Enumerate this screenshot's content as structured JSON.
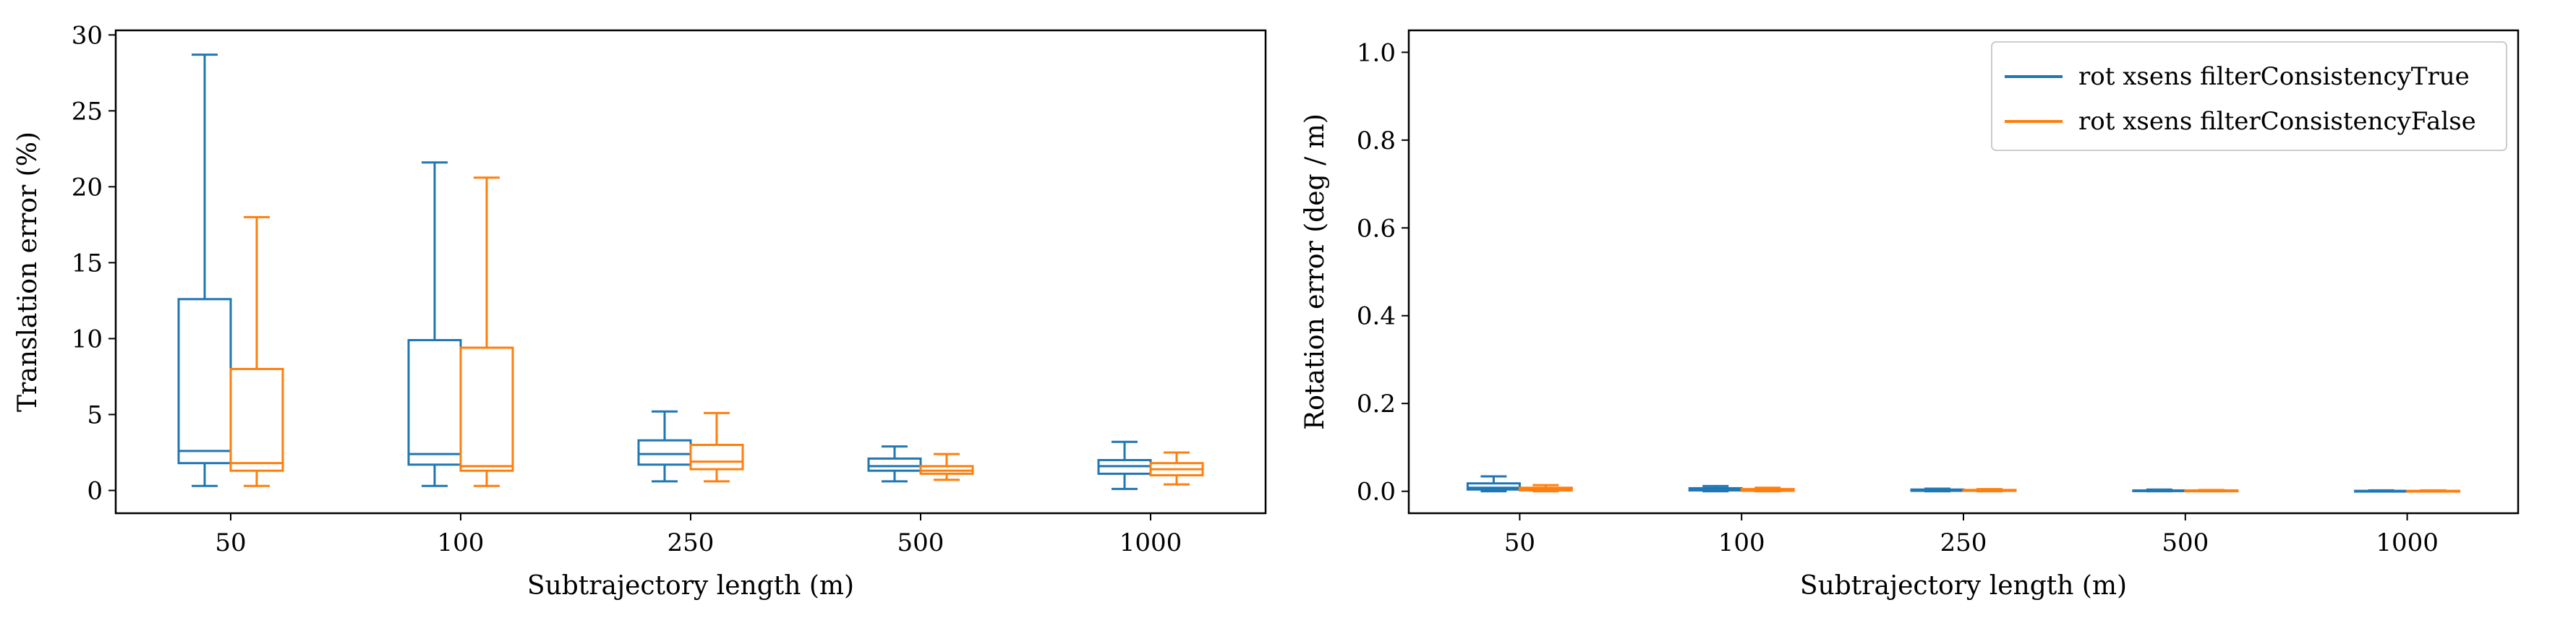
{
  "chart_data": [
    {
      "type": "box",
      "xlabel": "Subtrajectory length (m)",
      "ylabel": "Translation error (%)",
      "categories": [
        "50",
        "100",
        "250",
        "500",
        "1000"
      ],
      "ylim": [
        -1.5,
        30.3
      ],
      "yticks": [
        0,
        5,
        10,
        15,
        20,
        25,
        30
      ],
      "grid": false,
      "series": [
        {
          "name": "rot xsens filterConsistencyTrue",
          "color": "#1f77b4",
          "boxes": [
            {
              "whislo": 0.3,
              "q1": 1.8,
              "med": 2.6,
              "q3": 12.6,
              "whishi": 28.7
            },
            {
              "whislo": 0.3,
              "q1": 1.7,
              "med": 2.4,
              "q3": 9.9,
              "whishi": 21.6
            },
            {
              "whislo": 0.6,
              "q1": 1.7,
              "med": 2.4,
              "q3": 3.3,
              "whishi": 5.2
            },
            {
              "whislo": 0.6,
              "q1": 1.3,
              "med": 1.6,
              "q3": 2.1,
              "whishi": 2.9
            },
            {
              "whislo": 0.1,
              "q1": 1.1,
              "med": 1.6,
              "q3": 2.0,
              "whishi": 3.2
            }
          ]
        },
        {
          "name": "rot xsens filterConsistencyFalse",
          "color": "#ff7f0e",
          "boxes": [
            {
              "whislo": 0.3,
              "q1": 1.3,
              "med": 1.8,
              "q3": 8.0,
              "whishi": 18.0
            },
            {
              "whislo": 0.3,
              "q1": 1.3,
              "med": 1.6,
              "q3": 9.4,
              "whishi": 20.6
            },
            {
              "whislo": 0.6,
              "q1": 1.4,
              "med": 1.9,
              "q3": 3.0,
              "whishi": 5.1
            },
            {
              "whislo": 0.7,
              "q1": 1.1,
              "med": 1.3,
              "q3": 1.6,
              "whishi": 2.4
            },
            {
              "whislo": 0.4,
              "q1": 1.0,
              "med": 1.4,
              "q3": 1.8,
              "whishi": 2.5
            }
          ]
        }
      ]
    },
    {
      "type": "box",
      "xlabel": "Subtrajectory length (m)",
      "ylabel": "Rotation error (deg / m)",
      "categories": [
        "50",
        "100",
        "250",
        "500",
        "1000"
      ],
      "ylim": [
        -0.05,
        1.05
      ],
      "yticks": [
        "0.0",
        "0.2",
        "0.4",
        "0.6",
        "0.8",
        "1.0"
      ],
      "grid": false,
      "legend": "top-right",
      "series": [
        {
          "name": "rot xsens filterConsistencyTrue",
          "color": "#1f77b4",
          "boxes": [
            {
              "whislo": 0.0,
              "q1": 0.004,
              "med": 0.008,
              "q3": 0.018,
              "whishi": 0.034
            },
            {
              "whislo": 0.0,
              "q1": 0.002,
              "med": 0.004,
              "q3": 0.007,
              "whishi": 0.012
            },
            {
              "whislo": 0.0,
              "q1": 0.001,
              "med": 0.002,
              "q3": 0.004,
              "whishi": 0.006
            },
            {
              "whislo": 0.0,
              "q1": 0.001,
              "med": 0.001,
              "q3": 0.002,
              "whishi": 0.004
            },
            {
              "whislo": 0.0,
              "q1": 0.0,
              "med": 0.001,
              "q3": 0.001,
              "whishi": 0.002
            }
          ]
        },
        {
          "name": "rot xsens filterConsistencyFalse",
          "color": "#ff7f0e",
          "boxes": [
            {
              "whislo": 0.0,
              "q1": 0.002,
              "med": 0.004,
              "q3": 0.008,
              "whishi": 0.014
            },
            {
              "whislo": 0.0,
              "q1": 0.001,
              "med": 0.003,
              "q3": 0.005,
              "whishi": 0.008
            },
            {
              "whislo": 0.0,
              "q1": 0.001,
              "med": 0.002,
              "q3": 0.003,
              "whishi": 0.005
            },
            {
              "whislo": 0.0,
              "q1": 0.0,
              "med": 0.001,
              "q3": 0.002,
              "whishi": 0.003
            },
            {
              "whislo": 0.0,
              "q1": 0.0,
              "med": 0.001,
              "q3": 0.001,
              "whishi": 0.002
            }
          ]
        }
      ]
    }
  ]
}
